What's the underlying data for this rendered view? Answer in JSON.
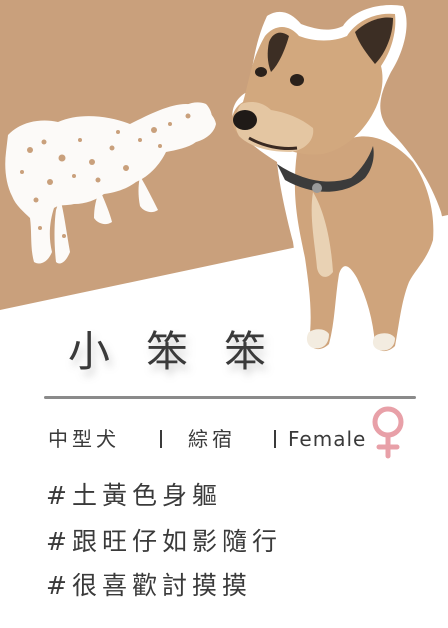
{
  "profile": {
    "name": "小笨笨",
    "attributes": {
      "size": "中型犬",
      "status": "綜宿",
      "gender": "Female",
      "gender_icon": "female-symbol-icon"
    },
    "tags": [
      "#土黃色身軀",
      "#跟旺仔如影隨行",
      "#很喜歡討摸摸"
    ]
  },
  "colors": {
    "background_tan": "#c9a07c",
    "text": "#3a3a3a",
    "divider": "#8a8a8a",
    "female_symbol": "#e8a0a8",
    "silhouette": "#ffffff"
  },
  "images": {
    "dog_photo": "tan-dog-photo",
    "decoration": "white-splatter-dog-silhouette"
  }
}
